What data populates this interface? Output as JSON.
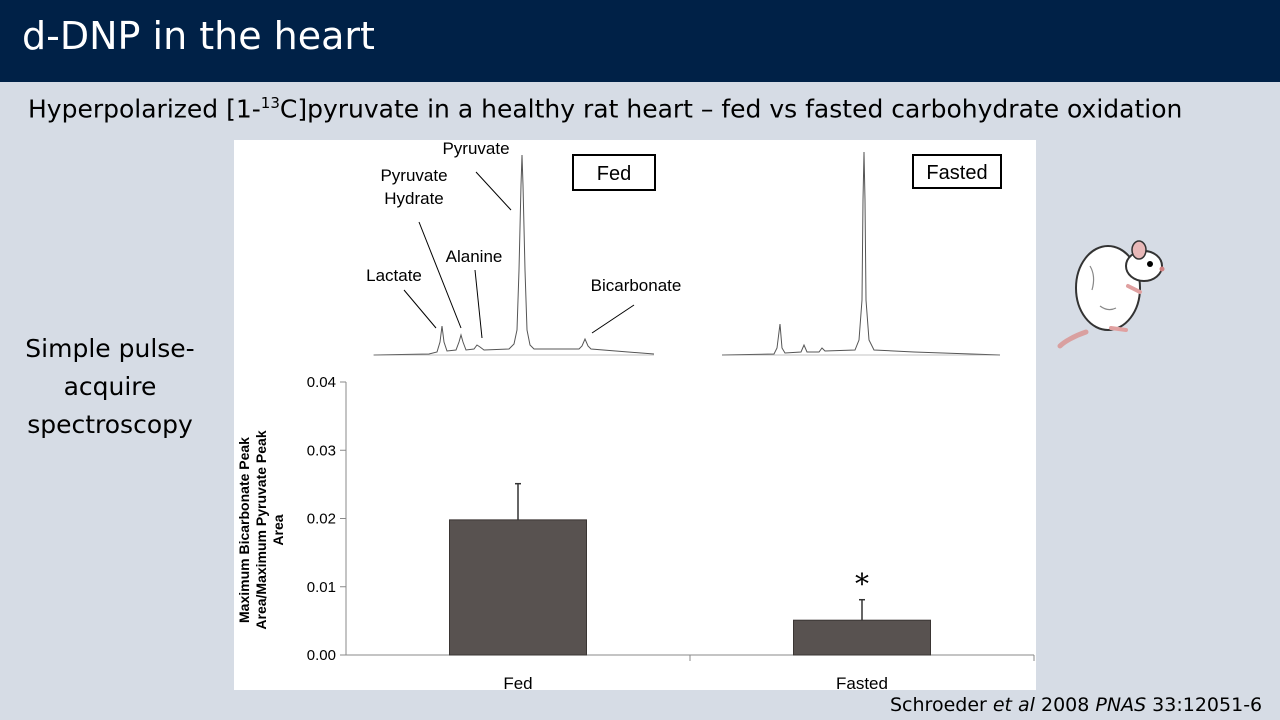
{
  "slide": {
    "title": "d-DNP in the heart",
    "subtitle_pre": "Hyperpolarized [1-",
    "subtitle_sup": "13",
    "subtitle_post": "C]pyruvate in a healthy rat heart – fed vs fasted carbohydrate oxidation",
    "side_text": "Simple pulse-acquire spectroscopy",
    "citation": {
      "authors": "Schroeder ",
      "etal": "et al",
      "year": " 2008 ",
      "journal": "PNAS",
      "ref": " 33:12051-6"
    }
  },
  "spectra": {
    "fed_label": "Fed",
    "fasted_label": "Fasted",
    "peak_labels": {
      "pyruvate": "Pyruvate",
      "hydrate_1": "Pyruvate",
      "hydrate_2": "Hydrate",
      "alanine": "Alanine",
      "lactate": "Lactate",
      "bicarbonate": "Bicarbonate"
    }
  },
  "chart_data": {
    "type": "bar",
    "categories": [
      "Fed",
      "Fasted"
    ],
    "values": [
      0.0198,
      0.0051
    ],
    "errors": [
      0.0053,
      0.003
    ],
    "ylabel_line1": "Maximum Bicarbonate Peak",
    "ylabel_line2": "Area/Maximum Pyruvate Peak",
    "ylabel_line3": "Area",
    "ylim": [
      0,
      0.04
    ],
    "yticks": [
      0,
      0.01,
      0.02,
      0.03,
      0.04
    ],
    "ytick_labels": [
      "0.00",
      "0.01",
      "0.02",
      "0.03",
      "0.04"
    ],
    "annotations": [
      {
        "category": "Fasted",
        "text": "*"
      }
    ],
    "bar_color": "#585250",
    "grid": false
  }
}
